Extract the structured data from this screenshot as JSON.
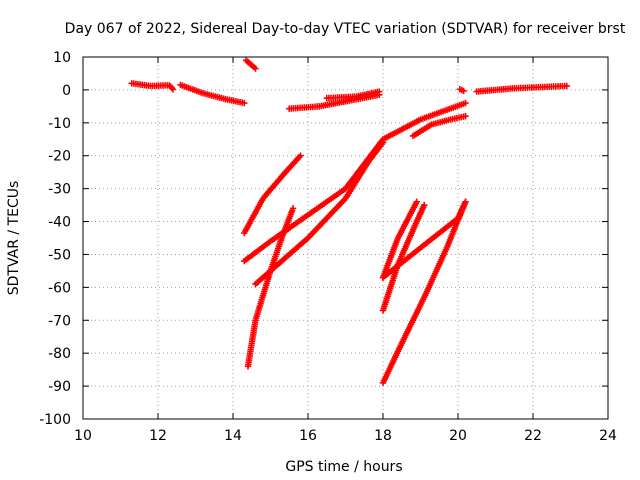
{
  "chart_data": {
    "type": "scatter",
    "title": "Day 067 of 2022, Sidereal Day-to-day VTEC variation (SDTVAR) for receiver brst",
    "xlabel": "GPS time / hours",
    "ylabel": "SDTVAR / TECUs",
    "xlim": [
      10,
      24
    ],
    "ylim": [
      -100,
      10
    ],
    "xticks": [
      10,
      12,
      14,
      16,
      18,
      20,
      22,
      24
    ],
    "yticks": [
      10,
      0,
      -10,
      -20,
      -30,
      -40,
      -50,
      -60,
      -70,
      -80,
      -90,
      -100
    ],
    "grid": true,
    "marker": "plus",
    "colors": {
      "series": "#ff0000",
      "grid": "#a0a0a0",
      "axis": "#000000"
    },
    "series": [
      {
        "points": [
          [
            11.3,
            2.0
          ],
          [
            11.8,
            1.2
          ],
          [
            12.3,
            1.4
          ],
          [
            12.4,
            0.2
          ]
        ]
      },
      {
        "points": [
          [
            12.6,
            1.5
          ],
          [
            13.2,
            -1.0
          ],
          [
            13.8,
            -2.8
          ],
          [
            14.3,
            -4.0
          ]
        ]
      },
      {
        "points": [
          [
            14.35,
            9.0
          ],
          [
            14.6,
            6.5
          ]
        ]
      },
      {
        "points": [
          [
            15.5,
            -5.7
          ],
          [
            16.3,
            -5.0
          ],
          [
            17.0,
            -3.5
          ],
          [
            17.9,
            -1.5
          ]
        ]
      },
      {
        "points": [
          [
            16.5,
            -2.5
          ],
          [
            17.3,
            -2.0
          ],
          [
            17.9,
            -0.5
          ]
        ]
      },
      {
        "points": [
          [
            20.05,
            0.2
          ],
          [
            20.15,
            -0.3
          ]
        ]
      },
      {
        "points": [
          [
            20.5,
            -0.5
          ],
          [
            21.5,
            0.5
          ],
          [
            22.9,
            1.2
          ]
        ]
      },
      {
        "points": [
          [
            14.3,
            -43.5
          ],
          [
            14.8,
            -33
          ],
          [
            15.4,
            -25
          ],
          [
            15.8,
            -20
          ]
        ]
      },
      {
        "points": [
          [
            14.3,
            -52
          ],
          [
            15.0,
            -46
          ],
          [
            16.0,
            -38
          ],
          [
            17.0,
            -30
          ],
          [
            18.0,
            -15
          ],
          [
            19.0,
            -9
          ],
          [
            20.2,
            -4
          ]
        ]
      },
      {
        "points": [
          [
            14.6,
            -59
          ],
          [
            15.0,
            -55
          ],
          [
            16.0,
            -45
          ],
          [
            17.0,
            -33
          ],
          [
            17.6,
            -22
          ],
          [
            18.0,
            -16
          ]
        ]
      },
      {
        "points": [
          [
            14.4,
            -84
          ],
          [
            14.6,
            -70
          ],
          [
            15.0,
            -55
          ],
          [
            15.3,
            -45
          ],
          [
            15.6,
            -36
          ]
        ]
      },
      {
        "points": [
          [
            18.8,
            -14
          ],
          [
            19.3,
            -10.5
          ],
          [
            19.8,
            -9
          ],
          [
            20.2,
            -8
          ]
        ]
      },
      {
        "points": [
          [
            18.0,
            -57
          ],
          [
            18.4,
            -45
          ],
          [
            18.9,
            -34
          ]
        ]
      },
      {
        "points": [
          [
            18.0,
            -67
          ],
          [
            18.4,
            -53
          ],
          [
            18.9,
            -40
          ],
          [
            19.1,
            -35
          ]
        ]
      },
      {
        "points": [
          [
            18.0,
            -57
          ],
          [
            19.0,
            -48
          ],
          [
            20.0,
            -39
          ],
          [
            20.2,
            -34
          ]
        ]
      },
      {
        "points": [
          [
            18.0,
            -89
          ],
          [
            18.5,
            -77
          ],
          [
            19.1,
            -63
          ],
          [
            19.7,
            -48
          ],
          [
            20.2,
            -34
          ]
        ]
      }
    ]
  }
}
